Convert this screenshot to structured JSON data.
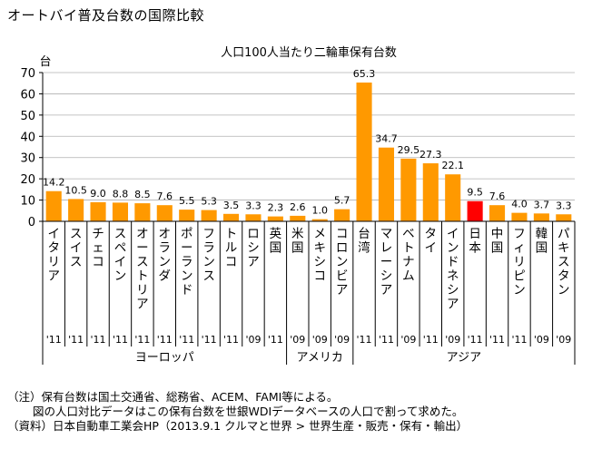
{
  "page_title": "オートバイ普及台数の国際比較",
  "chart_data": {
    "type": "bar",
    "title": "人口100人当たり二輪車保有台数",
    "ylabel": "台",
    "xlabel": "",
    "ylim": [
      0,
      70
    ],
    "yticks": [
      0,
      10,
      20,
      30,
      40,
      50,
      60,
      70
    ],
    "grid": true,
    "bar_color": "#FF9900",
    "highlight_color": "#FF0000",
    "categories": [
      "イタリア",
      "スイス",
      "チェコ",
      "スペイン",
      "オーストリア",
      "オランダ",
      "ポーランド",
      "フランス",
      "トルコ",
      "ロシア",
      "英国",
      "米国",
      "メキシコ",
      "コロンビア",
      "台湾",
      "マレーシア",
      "ベトナム",
      "タイ",
      "インドネシア",
      "日本",
      "中国",
      "フィリピン",
      "韓国",
      "パキスタン"
    ],
    "values": [
      14.2,
      10.5,
      9.0,
      8.8,
      8.5,
      7.6,
      5.5,
      5.3,
      3.5,
      3.3,
      2.3,
      2.6,
      1.0,
      5.7,
      65.3,
      34.7,
      29.5,
      27.3,
      22.1,
      9.5,
      7.6,
      4.0,
      3.7,
      3.3
    ],
    "value_labels": [
      "14.2",
      "10.5",
      "9.0",
      "8.8",
      "8.5",
      "7.6",
      "5.5",
      "5.3",
      "3.5",
      "3.3",
      "2.3",
      "2.6",
      "1.0",
      "5.7",
      "65.3",
      "34.7",
      "29.5",
      "27.3",
      "22.1",
      "9.5",
      "7.6",
      "4.0",
      "3.7",
      "3.3"
    ],
    "years": [
      "'11",
      "'11",
      "'11",
      "'11",
      "'11",
      "'11",
      "'11",
      "'11",
      "'11",
      "'09",
      "'11",
      "'09",
      "'09",
      "'09",
      "'11",
      "'11",
      "'09",
      "'11",
      "'09",
      "'11",
      "'11",
      "'11",
      "'09",
      "'09"
    ],
    "highlight": [
      "日本"
    ],
    "groups": [
      {
        "name": "ヨーロッパ",
        "start": 0,
        "end": 10
      },
      {
        "name": "アメリカ",
        "start": 11,
        "end": 13
      },
      {
        "name": "アジア",
        "start": 14,
        "end": 23
      }
    ]
  },
  "notes": {
    "line1": "（注）保有台数は国土交通省、総務省、ACEM、FAMI等による。",
    "line2": "図の人口対比データはこの保有台数を世銀WDIデータベースの人口で割って求めた。",
    "line3": "（資料）日本自動車工業会HP（2013.9.1 クルマと世界 > 世界生産・販売・保有・輸出）"
  }
}
